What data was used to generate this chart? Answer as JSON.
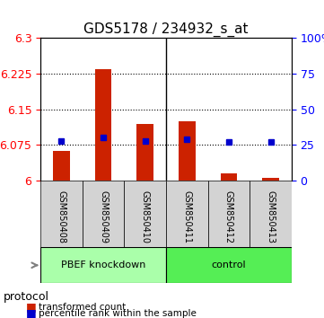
{
  "title": "GDS5178 / 234932_s_at",
  "samples": [
    "GSM850408",
    "GSM850409",
    "GSM850410",
    "GSM850411",
    "GSM850412",
    "GSM850413"
  ],
  "red_values": [
    6.063,
    6.235,
    6.12,
    6.125,
    6.015,
    6.005
  ],
  "blue_values_pct": [
    28,
    30,
    28,
    29,
    27,
    27
  ],
  "red_baseline": 6.0,
  "ylim_left": [
    6.0,
    6.3
  ],
  "ylim_right": [
    0,
    100
  ],
  "yticks_left": [
    6.0,
    6.075,
    6.15,
    6.225,
    6.3
  ],
  "yticks_right": [
    0,
    25,
    50,
    75,
    100
  ],
  "ytick_labels_left": [
    "6",
    "6.075",
    "6.15",
    "6.225",
    "6.3"
  ],
  "ytick_labels_right": [
    "0",
    "25",
    "50",
    "75",
    "100%"
  ],
  "groups": [
    {
      "label": "PBEF knockdown",
      "indices": [
        0,
        1,
        2
      ],
      "color": "#90EE90"
    },
    {
      "label": "control",
      "indices": [
        3,
        4,
        5
      ],
      "color": "#00EE00"
    }
  ],
  "protocol_label": "protocol",
  "legend_red": "transformed count",
  "legend_blue": "percentile rank within the sample",
  "bar_color": "#CC2200",
  "blue_color": "#0000CC",
  "grid_color": "#000000",
  "bg_color": "#FFFFFF",
  "sample_bg_color": "#D3D3D3",
  "bar_width": 0.4,
  "red_fontsize": 9,
  "blue_fontsize": 9,
  "title_fontsize": 11
}
